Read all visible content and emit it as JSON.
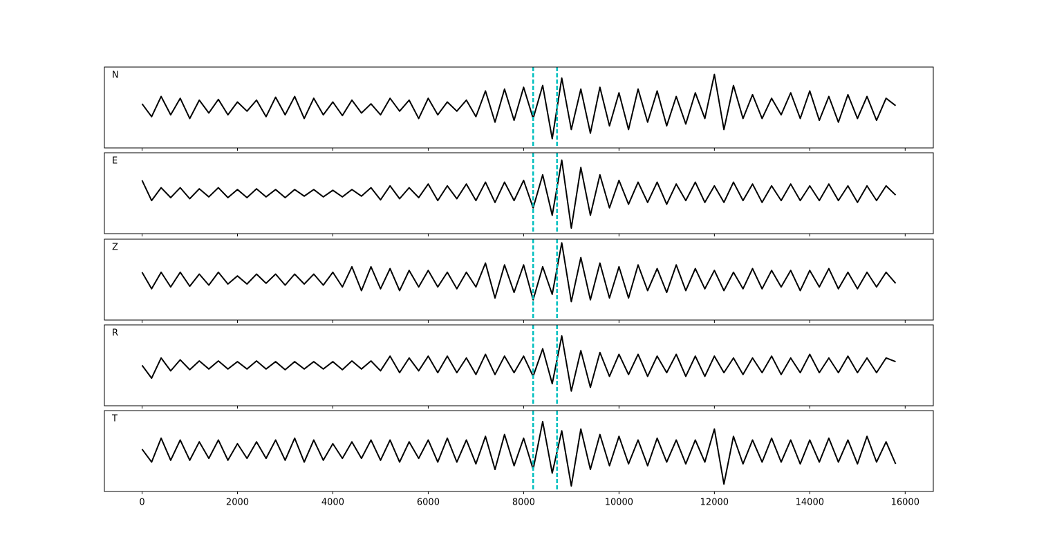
{
  "chart_data": [
    {
      "type": "line",
      "label": "N",
      "color": "#000000",
      "vlines": [
        8200,
        8700
      ],
      "vline_color": "#00bfbf",
      "xlim": [
        -790,
        16590
      ],
      "ylim": [
        -1.1,
        1.1
      ],
      "xticks": [
        0,
        2000,
        4000,
        6000,
        8000,
        10000,
        12000,
        14000,
        16000
      ],
      "x": [
        0,
        200,
        400,
        600,
        800,
        1000,
        1200,
        1400,
        1600,
        1800,
        2000,
        2200,
        2400,
        2600,
        2800,
        3000,
        3200,
        3400,
        3600,
        3800,
        4000,
        4200,
        4400,
        4600,
        4800,
        5000,
        5200,
        5400,
        5600,
        5800,
        6000,
        6200,
        6400,
        6600,
        6800,
        7000,
        7200,
        7400,
        7600,
        7800,
        8000,
        8200,
        8400,
        8600,
        8800,
        9000,
        9200,
        9400,
        9600,
        9800,
        10000,
        10200,
        10400,
        10600,
        10800,
        11000,
        11200,
        11400,
        11600,
        11800,
        12000,
        12200,
        12400,
        12600,
        12800,
        13000,
        13200,
        13400,
        13600,
        13800,
        14000,
        14200,
        14400,
        14600,
        14800,
        15000,
        15200,
        15400,
        15600,
        15800
      ],
      "values": [
        0.1,
        -0.25,
        0.3,
        -0.2,
        0.25,
        -0.3,
        0.2,
        -0.15,
        0.22,
        -0.2,
        0.15,
        -0.1,
        0.2,
        -0.25,
        0.28,
        -0.2,
        0.3,
        -0.3,
        0.25,
        -0.2,
        0.15,
        -0.22,
        0.2,
        -0.15,
        0.1,
        -0.2,
        0.25,
        -0.1,
        0.2,
        -0.3,
        0.25,
        -0.2,
        0.15,
        -0.1,
        0.2,
        -0.25,
        0.45,
        -0.4,
        0.5,
        -0.35,
        0.55,
        -0.3,
        0.6,
        -0.85,
        0.8,
        -0.6,
        0.5,
        -0.7,
        0.55,
        -0.5,
        0.4,
        -0.6,
        0.5,
        -0.4,
        0.45,
        -0.5,
        0.3,
        -0.45,
        0.4,
        -0.3,
        0.9,
        -0.6,
        0.6,
        -0.3,
        0.35,
        -0.3,
        0.25,
        -0.2,
        0.4,
        -0.3,
        0.45,
        -0.35,
        0.3,
        -0.4,
        0.35,
        -0.3,
        0.3,
        -0.35,
        0.25,
        0.05
      ]
    },
    {
      "type": "line",
      "label": "E",
      "color": "#000000",
      "vlines": [
        8200,
        8700
      ],
      "vline_color": "#00bfbf",
      "xlim": [
        -790,
        16590
      ],
      "ylim": [
        -1.1,
        1.1
      ],
      "xticks": [
        0,
        2000,
        4000,
        6000,
        8000,
        10000,
        12000,
        14000,
        16000
      ],
      "x": [
        0,
        200,
        400,
        600,
        800,
        1000,
        1200,
        1400,
        1600,
        1800,
        2000,
        2200,
        2400,
        2600,
        2800,
        3000,
        3200,
        3400,
        3600,
        3800,
        4000,
        4200,
        4400,
        4600,
        4800,
        5000,
        5200,
        5400,
        5600,
        5800,
        6000,
        6200,
        6400,
        6600,
        6800,
        7000,
        7200,
        7400,
        7600,
        7800,
        8000,
        8200,
        8400,
        8600,
        8800,
        9000,
        9200,
        9400,
        9600,
        9800,
        10000,
        10200,
        10400,
        10600,
        10800,
        11000,
        11200,
        11400,
        11600,
        11800,
        12000,
        12200,
        12400,
        12600,
        12800,
        13000,
        13200,
        13400,
        13600,
        13800,
        14000,
        14200,
        14400,
        14600,
        14800,
        15000,
        15200,
        15400,
        15600,
        15800
      ],
      "values": [
        0.35,
        -0.2,
        0.15,
        -0.12,
        0.15,
        -0.15,
        0.12,
        -0.1,
        0.15,
        -0.12,
        0.1,
        -0.12,
        0.12,
        -0.1,
        0.1,
        -0.12,
        0.1,
        -0.08,
        0.1,
        -0.1,
        0.08,
        -0.1,
        0.1,
        -0.08,
        0.15,
        -0.18,
        0.2,
        -0.15,
        0.15,
        -0.12,
        0.25,
        -0.2,
        0.2,
        -0.15,
        0.25,
        -0.2,
        0.3,
        -0.25,
        0.3,
        -0.2,
        0.35,
        -0.4,
        0.5,
        -0.6,
        0.9,
        -0.95,
        0.7,
        -0.6,
        0.5,
        -0.4,
        0.35,
        -0.3,
        0.3,
        -0.25,
        0.3,
        -0.3,
        0.25,
        -0.2,
        0.3,
        -0.25,
        0.2,
        -0.25,
        0.3,
        -0.2,
        0.25,
        -0.25,
        0.2,
        -0.2,
        0.25,
        -0.2,
        0.2,
        -0.2,
        0.25,
        -0.2,
        0.2,
        -0.25,
        0.2,
        -0.2,
        0.2,
        -0.05
      ]
    },
    {
      "type": "line",
      "label": "Z",
      "color": "#000000",
      "vlines": [
        8200,
        8700
      ],
      "vline_color": "#00bfbf",
      "xlim": [
        -790,
        16590
      ],
      "ylim": [
        -1.1,
        1.1
      ],
      "xticks": [
        0,
        2000,
        4000,
        6000,
        8000,
        10000,
        12000,
        14000,
        16000
      ],
      "x": [
        0,
        200,
        400,
        600,
        800,
        1000,
        1200,
        1400,
        1600,
        1800,
        2000,
        2200,
        2400,
        2600,
        2800,
        3000,
        3200,
        3400,
        3600,
        3800,
        4000,
        4200,
        4400,
        4600,
        4800,
        5000,
        5200,
        5400,
        5600,
        5800,
        6000,
        6200,
        6400,
        6600,
        6800,
        7000,
        7200,
        7400,
        7600,
        7800,
        8000,
        8200,
        8400,
        8600,
        8800,
        9000,
        9200,
        9400,
        9600,
        9800,
        10000,
        10200,
        10400,
        10600,
        10800,
        11000,
        11200,
        11400,
        11600,
        11800,
        12000,
        12200,
        12400,
        12600,
        12800,
        13000,
        13200,
        13400,
        13600,
        13800,
        14000,
        14200,
        14400,
        14600,
        14800,
        15000,
        15200,
        15400,
        15600,
        15800
      ],
      "values": [
        0.2,
        -0.25,
        0.2,
        -0.2,
        0.2,
        -0.18,
        0.15,
        -0.15,
        0.2,
        -0.12,
        0.1,
        -0.12,
        0.15,
        -0.1,
        0.15,
        -0.15,
        0.15,
        -0.12,
        0.15,
        -0.15,
        0.2,
        -0.2,
        0.35,
        -0.3,
        0.35,
        -0.25,
        0.3,
        -0.3,
        0.25,
        -0.2,
        0.25,
        -0.2,
        0.2,
        -0.25,
        0.2,
        -0.2,
        0.45,
        -0.5,
        0.4,
        -0.35,
        0.4,
        -0.55,
        0.35,
        -0.4,
        1.0,
        -0.6,
        0.6,
        -0.55,
        0.45,
        -0.5,
        0.35,
        -0.5,
        0.4,
        -0.3,
        0.3,
        -0.35,
        0.4,
        -0.3,
        0.3,
        -0.25,
        0.25,
        -0.3,
        0.2,
        -0.25,
        0.3,
        -0.25,
        0.25,
        -0.2,
        0.25,
        -0.3,
        0.25,
        -0.2,
        0.3,
        -0.25,
        0.2,
        -0.25,
        0.2,
        -0.2,
        0.2,
        -0.1
      ]
    },
    {
      "type": "line",
      "label": "R",
      "color": "#000000",
      "vlines": [
        8200,
        8700
      ],
      "vline_color": "#00bfbf",
      "xlim": [
        -790,
        16590
      ],
      "ylim": [
        -1.1,
        1.1
      ],
      "xticks": [
        0,
        2000,
        4000,
        6000,
        8000,
        10000,
        12000,
        14000,
        16000
      ],
      "x": [
        0,
        200,
        400,
        600,
        800,
        1000,
        1200,
        1400,
        1600,
        1800,
        2000,
        2200,
        2400,
        2600,
        2800,
        3000,
        3200,
        3400,
        3600,
        3800,
        4000,
        4200,
        4400,
        4600,
        4800,
        5000,
        5200,
        5400,
        5600,
        5800,
        6000,
        6200,
        6400,
        6600,
        6800,
        7000,
        7200,
        7400,
        7600,
        7800,
        8000,
        8200,
        8400,
        8600,
        8800,
        9000,
        9200,
        9400,
        9600,
        9800,
        10000,
        10200,
        10400,
        10600,
        10800,
        11000,
        11200,
        11400,
        11600,
        11800,
        12000,
        12200,
        12400,
        12600,
        12800,
        13000,
        13200,
        13400,
        13600,
        13800,
        14000,
        14200,
        14400,
        14600,
        14800,
        15000,
        15200,
        15400,
        15600,
        15800
      ],
      "values": [
        0.0,
        -0.35,
        0.2,
        -0.15,
        0.15,
        -0.12,
        0.12,
        -0.1,
        0.12,
        -0.1,
        0.1,
        -0.1,
        0.12,
        -0.1,
        0.1,
        -0.12,
        0.1,
        -0.1,
        0.1,
        -0.1,
        0.1,
        -0.12,
        0.12,
        -0.1,
        0.12,
        -0.15,
        0.25,
        -0.2,
        0.2,
        -0.15,
        0.25,
        -0.2,
        0.25,
        -0.2,
        0.2,
        -0.25,
        0.3,
        -0.25,
        0.25,
        -0.2,
        0.25,
        -0.3,
        0.45,
        -0.5,
        0.8,
        -0.7,
        0.4,
        -0.6,
        0.35,
        -0.3,
        0.3,
        -0.25,
        0.3,
        -0.3,
        0.25,
        -0.2,
        0.3,
        -0.3,
        0.25,
        -0.3,
        0.25,
        -0.2,
        0.2,
        -0.25,
        0.2,
        -0.2,
        0.25,
        -0.25,
        0.2,
        -0.2,
        0.3,
        -0.2,
        0.2,
        -0.2,
        0.25,
        -0.2,
        0.2,
        -0.2,
        0.2,
        0.1
      ]
    },
    {
      "type": "line",
      "label": "T",
      "color": "#000000",
      "vlines": [
        8200,
        8700
      ],
      "vline_color": "#00bfbf",
      "xlim": [
        -790,
        16590
      ],
      "ylim": [
        -1.1,
        1.1
      ],
      "xticks": [
        0,
        2000,
        4000,
        6000,
        8000,
        10000,
        12000,
        14000,
        16000
      ],
      "x": [
        0,
        200,
        400,
        600,
        800,
        1000,
        1200,
        1400,
        1600,
        1800,
        2000,
        2200,
        2400,
        2600,
        2800,
        3000,
        3200,
        3400,
        3600,
        3800,
        4000,
        4200,
        4400,
        4600,
        4800,
        5000,
        5200,
        5400,
        5600,
        5800,
        6000,
        6200,
        6400,
        6600,
        6800,
        7000,
        7200,
        7400,
        7600,
        7800,
        8000,
        8200,
        8400,
        8600,
        8800,
        9000,
        9200,
        9400,
        9600,
        9800,
        10000,
        10200,
        10400,
        10600,
        10800,
        11000,
        11200,
        11400,
        11600,
        11800,
        12000,
        12200,
        12400,
        12600,
        12800,
        13000,
        13200,
        13400,
        13600,
        13800,
        14000,
        14200,
        14400,
        14600,
        14800,
        15000,
        15200,
        15400,
        15600,
        15800
      ],
      "values": [
        0.05,
        -0.3,
        0.35,
        -0.25,
        0.3,
        -0.25,
        0.25,
        -0.2,
        0.3,
        -0.25,
        0.2,
        -0.2,
        0.25,
        -0.2,
        0.3,
        -0.25,
        0.35,
        -0.3,
        0.3,
        -0.25,
        0.2,
        -0.2,
        0.25,
        -0.2,
        0.3,
        -0.25,
        0.3,
        -0.3,
        0.25,
        -0.2,
        0.3,
        -0.3,
        0.35,
        -0.3,
        0.3,
        -0.35,
        0.4,
        -0.5,
        0.45,
        -0.4,
        0.35,
        -0.5,
        0.8,
        -0.6,
        0.55,
        -0.95,
        0.6,
        -0.5,
        0.45,
        -0.4,
        0.4,
        -0.35,
        0.3,
        -0.4,
        0.35,
        -0.3,
        0.3,
        -0.35,
        0.3,
        -0.3,
        0.6,
        -0.9,
        0.4,
        -0.35,
        0.3,
        -0.3,
        0.35,
        -0.3,
        0.3,
        -0.35,
        0.3,
        -0.3,
        0.35,
        -0.3,
        0.3,
        -0.35,
        0.4,
        -0.3,
        0.25,
        -0.35
      ]
    }
  ]
}
